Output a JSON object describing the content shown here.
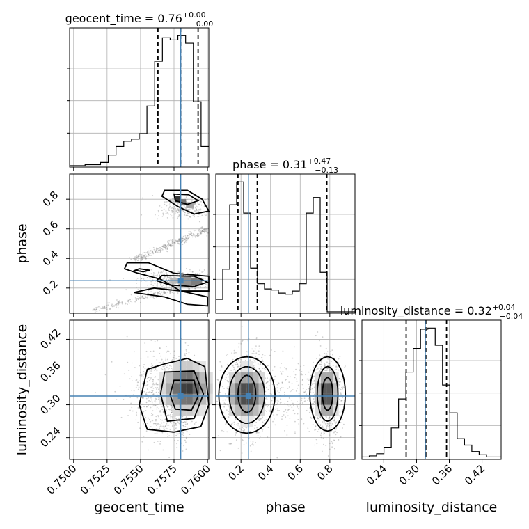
{
  "chart_data": {
    "type": "corner",
    "colors": {
      "truth": "#4682b4",
      "hist": "#000000",
      "grid": "#b0b0b0",
      "quantile": "#000000"
    },
    "truth": {
      "geocent_time": 0.758,
      "phase": 0.25,
      "luminosity_distance": 0.316
    },
    "parameters": [
      {
        "name": "geocent_time",
        "title": {
          "label": "geocent_time",
          "median": "0.76",
          "plus": "+0.00",
          "minus": "−0.00"
        },
        "range": [
          0.7497,
          0.7601
        ],
        "ticks": [
          0.75,
          0.7525,
          0.755,
          0.7575,
          0.76
        ],
        "tick_labels": [
          "0.7500",
          "0.7525",
          "0.7550",
          "0.7575",
          "0.7600"
        ],
        "quantiles": [
          0.7563,
          0.758,
          0.7593
        ],
        "hist_counts": [
          0,
          0,
          1,
          1,
          3,
          10,
          18,
          23,
          25,
          30,
          56,
          98,
          120,
          118,
          122,
          115,
          60,
          18
        ]
      },
      {
        "name": "phase",
        "title": {
          "label": "phase",
          "median": "0.31",
          "plus": "+0.47",
          "minus": "−0.13"
        },
        "range": [
          0.03,
          0.97
        ],
        "ticks": [
          0.2,
          0.4,
          0.6,
          0.8
        ],
        "tick_labels": [
          "0.2",
          "0.4",
          "0.6",
          "0.8"
        ],
        "quantiles": [
          0.18,
          0.31,
          0.78
        ],
        "hist_counts": [
          12,
          41,
          103,
          125,
          95,
          42,
          27,
          22,
          21,
          18,
          17,
          20,
          27,
          95,
          110,
          38,
          0,
          0,
          0,
          0
        ]
      },
      {
        "name": "luminosity_distance",
        "title": {
          "label": "luminosity_distance",
          "median": "0.32",
          "plus": "+0.04",
          "minus": "−0.04"
        },
        "range": [
          0.2,
          0.455
        ],
        "ticks": [
          0.24,
          0.3,
          0.36,
          0.42
        ],
        "tick_labels": [
          "0.24",
          "0.30",
          "0.36",
          "0.42"
        ],
        "quantiles": [
          0.281,
          0.317,
          0.355
        ],
        "hist_counts": [
          1,
          2,
          4,
          10,
          28,
          55,
          80,
          102,
          120,
          121,
          105,
          68,
          42,
          18,
          12,
          6,
          3,
          1,
          1
        ]
      }
    ],
    "xlabels": [
      "geocent_time",
      "phase",
      "luminosity_distance"
    ],
    "ylabels": [
      "",
      "phase",
      "luminosity_distance"
    ]
  }
}
